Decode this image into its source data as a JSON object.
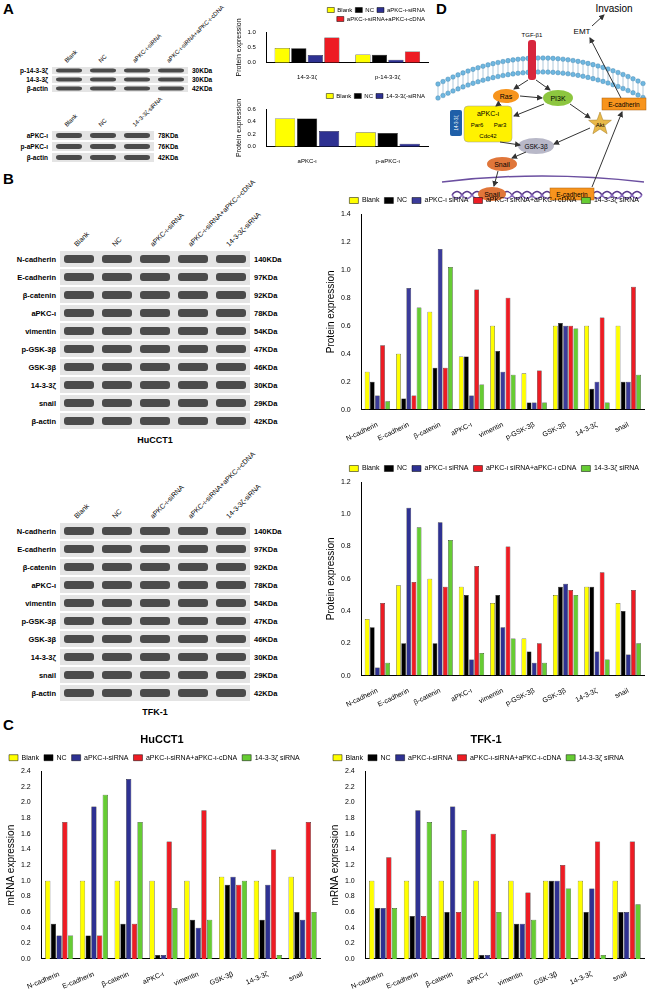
{
  "panel_labels": [
    "A",
    "B",
    "C",
    "D"
  ],
  "blots": [
    {
      "lanes": [
        "Blank",
        "NC",
        "aPKC-ι-siRNA",
        "aPKC-ι-siRNA+aPKC-ι-cDNA"
      ],
      "rows": [
        {
          "label": "p-14-3-3ζ",
          "size": "30KDa"
        },
        {
          "label": "14-3-3ζ",
          "size": "30KDa"
        },
        {
          "label": "β-actin",
          "size": "42KDa"
        }
      ]
    },
    {
      "lanes": [
        "Blank",
        "NC",
        "14-3-3ζ-siRNA"
      ],
      "rows": [
        {
          "label": "aPKC-ι",
          "size": "78KDa"
        },
        {
          "label": "p-aPKC-ι",
          "size": "76KDa"
        },
        {
          "label": "β-actin",
          "size": "42KDa"
        }
      ]
    },
    {
      "lanes": [
        "Blank",
        "NC",
        "aPKC-ι-siRNA",
        "aPKC-ι-siRNA+aPKC-ι-cDNA",
        "14-3-3ζ-siRNA"
      ],
      "rows": [
        {
          "label": "N-cadherin",
          "size": "140KDa"
        },
        {
          "label": "E-cadherin",
          "size": "97KDa"
        },
        {
          "label": "β-catenin",
          "size": "92KDa"
        },
        {
          "label": "aPKC-ι",
          "size": "78KDa"
        },
        {
          "label": "vimentin",
          "size": "54KDa"
        },
        {
          "label": "p-GSK-3β",
          "size": "47KDa"
        },
        {
          "label": "GSK-3β",
          "size": "46KDa"
        },
        {
          "label": "14-3-3ζ",
          "size": "30KDa"
        },
        {
          "label": "snail",
          "size": "29KDa"
        },
        {
          "label": "β-actin",
          "size": "42KDa"
        }
      ],
      "caption": "HuCCT1"
    },
    {
      "lanes": [
        "Blank",
        "NC",
        "aPKC-ι-siRNA",
        "aPKC-ι-siRNA+aPKC-ι-cDNA",
        "14-3-3ζ-siRNA"
      ],
      "rows": [
        {
          "label": "N-cadherin",
          "size": "140KDa"
        },
        {
          "label": "E-cadherin",
          "size": "97KDa"
        },
        {
          "label": "β-catenin",
          "size": "92KDa"
        },
        {
          "label": "aPKC-ι",
          "size": "78KDa"
        },
        {
          "label": "vimentin",
          "size": "54KDa"
        },
        {
          "label": "p-GSK-3β",
          "size": "47KDa"
        },
        {
          "label": "GSK-3β",
          "size": "46KDa"
        },
        {
          "label": "14-3-3ζ",
          "size": "30KDa"
        },
        {
          "label": "snail",
          "size": "29KDa"
        },
        {
          "label": "β-actin",
          "size": "42KDa"
        }
      ],
      "caption": "TFK-1"
    }
  ],
  "diagram": {
    "invasion": "Invasion",
    "emt": "EMT",
    "receptor": "TGF-β1",
    "ras": "Ras",
    "pi3k": "PI3K",
    "apkc": "aPKC-ι",
    "par6": "Par6",
    "par3": "Par3",
    "cdc42": "Cdc42",
    "tag": "14-3-3ζ",
    "akt": "Akt",
    "gsk": "GSK-3β",
    "snail": "Snail",
    "ecad": "E-cadherin",
    "nuclear_snail": "Snail",
    "nuclear_ecad": "E-cadherin"
  },
  "chart_data": [
    {
      "type": "bar",
      "y_label": "Protein expression",
      "categories": [
        "14-3-3ζ",
        "p-14-3-3ζ"
      ],
      "series": [
        {
          "name": "Blank",
          "color": "#ffff00",
          "values": [
            0.48,
            0.27
          ]
        },
        {
          "name": "NC",
          "color": "#000000",
          "values": [
            0.47,
            0.26
          ]
        },
        {
          "name": "aPKC-ι-siRNA",
          "color": "#2e3192",
          "values": [
            0.25,
            0.1
          ]
        },
        {
          "name": "aPKC-ι-siRNA+aPKC-ι-cDNA",
          "color": "#ed1c24",
          "values": [
            0.82,
            0.37
          ]
        }
      ],
      "ylim": [
        0,
        1
      ],
      "yticks": [
        {
          "value": 0,
          "label": "0.0"
        },
        0.5,
        {
          "value": 1,
          "label": "1.0"
        }
      ],
      "grid": false,
      "legend": "upper right"
    },
    {
      "type": "bar",
      "y_label": "Protein expression",
      "categories": [
        "aPKC-ι",
        "p-aPKC-ι"
      ],
      "series": [
        {
          "name": "Blank",
          "color": "#ffff00",
          "values": [
            0.45,
            0.23
          ]
        },
        {
          "name": "NC",
          "color": "#000000",
          "values": [
            0.45,
            0.22
          ]
        },
        {
          "name": "14-3-3ζ-siRNA",
          "color": "#2e3192",
          "values": [
            0.25,
            0.05
          ]
        }
      ],
      "ylim": [
        0,
        0.6
      ],
      "yticks": [
        {
          "value": 0,
          "label": "0.0"
        },
        0.2,
        0.4,
        0.6
      ],
      "grid": false,
      "legend": "upper right"
    },
    {
      "type": "bar",
      "y_label": "Protein expression",
      "categories": [
        "N-cadherin",
        "E-cadherin",
        "β-catenin",
        "aPKC-ι",
        "vimentin",
        "p-GSK-3β",
        "GSK-3β",
        "14-3-3ζ",
        "snail"
      ],
      "series": [
        {
          "name": "Blank",
          "color": "#ffff00",
          "values": [
            0.27,
            0.4,
            0.7,
            0.38,
            0.6,
            0.26,
            0.6,
            0.6,
            0.6
          ]
        },
        {
          "name": "NC",
          "color": "#000000",
          "values": [
            0.2,
            0.08,
            0.3,
            0.38,
            0.42,
            0.05,
            0.62,
            0.15,
            0.2
          ]
        },
        {
          "name": "aPKC-ι siRNA",
          "color": "#3b3b9a",
          "values": [
            0.1,
            0.87,
            1.15,
            0.1,
            0.27,
            0.05,
            0.6,
            0.2,
            0.2
          ]
        },
        {
          "name": "aPKC-ι siRNA+aPKC-ι cDNA",
          "color": "#ed1c24",
          "values": [
            0.46,
            0.1,
            0.3,
            0.86,
            0.8,
            0.28,
            0.6,
            0.66,
            0.88
          ]
        },
        {
          "name": "14-3-3ζ siRNA",
          "color": "#66cc33",
          "values": [
            0.06,
            0.73,
            1.02,
            0.18,
            0.25,
            0.05,
            0.58,
            0.05,
            0.25
          ]
        }
      ],
      "ylim": [
        0,
        1.4
      ],
      "yticks": [
        {
          "value": 0,
          "label": "0.0"
        },
        0.2,
        0.4,
        0.6,
        0.8,
        {
          "value": 1,
          "label": "1.0"
        },
        1.2,
        1.4
      ],
      "grid": false,
      "legend": "upper right"
    },
    {
      "type": "bar",
      "y_label": "Protein expression",
      "categories": [
        "N-cadherin",
        "E-cadherin",
        "β-catenin",
        "aPKC-ι",
        "vimentin",
        "p-GSK-3β",
        "GSK-3β",
        "14-3-3ζ",
        "snail"
      ],
      "series": [
        {
          "name": "Blank",
          "color": "#ffff00",
          "values": [
            0.35,
            0.56,
            0.6,
            0.55,
            0.45,
            0.23,
            0.5,
            0.55,
            0.45
          ]
        },
        {
          "name": "NC",
          "color": "#000000",
          "values": [
            0.3,
            0.2,
            0.2,
            0.5,
            0.5,
            0.15,
            0.55,
            0.55,
            0.4
          ]
        },
        {
          "name": "aPKC-ι siRNA",
          "color": "#2e3192",
          "values": [
            0.05,
            1.04,
            0.95,
            0.1,
            0.3,
            0.08,
            0.57,
            0.15,
            0.13
          ]
        },
        {
          "name": "aPKC-ι siRNA+aPKC-ι cDNA",
          "color": "#ed1c24",
          "values": [
            0.45,
            0.58,
            0.55,
            0.68,
            0.8,
            0.2,
            0.53,
            0.64,
            0.53
          ]
        },
        {
          "name": "14-3-3ζ siRNA",
          "color": "#66cc33",
          "values": [
            0.08,
            0.92,
            0.84,
            0.14,
            0.23,
            0.08,
            0.5,
            0.1,
            0.2
          ]
        }
      ],
      "ylim": [
        0,
        1.2
      ],
      "yticks": [
        {
          "value": 0,
          "label": "0.0"
        },
        0.2,
        0.4,
        0.6,
        0.8,
        {
          "value": 1,
          "label": "1.0"
        },
        1.2
      ],
      "grid": false,
      "legend": "upper right"
    },
    {
      "type": "bar",
      "title": "HuCCT1",
      "y_label": "mRNA expression",
      "categories": [
        "N-cadherin",
        "E-cadherin",
        "β-catenin",
        "aPKC-ι",
        "vimentin",
        "GSK-3β",
        "14-3-3ζ",
        "snail"
      ],
      "series": [
        {
          "name": "Blank",
          "color": "#ffff00",
          "values": [
            1.0,
            1.0,
            1.0,
            1.0,
            1.0,
            1.05,
            1.0,
            1.05
          ]
        },
        {
          "name": "NC",
          "color": "#000000",
          "values": [
            0.45,
            0.3,
            0.45,
            0.05,
            0.5,
            0.95,
            0.5,
            0.6
          ]
        },
        {
          "name": "aPKC-ι-siRNA",
          "color": "#2e3192",
          "values": [
            0.3,
            1.95,
            2.3,
            0.05,
            0.4,
            1.05,
            0.95,
            0.5
          ]
        },
        {
          "name": "aPKC-ι-siRNA+aPKC-ι-cDNA",
          "color": "#ed1c24",
          "values": [
            1.75,
            0.3,
            0.45,
            1.5,
            1.9,
            0.95,
            1.4,
            1.75
          ]
        },
        {
          "name": "14-3-3ζ siRNA",
          "color": "#66cc33",
          "values": [
            0.3,
            2.1,
            1.75,
            0.65,
            0.5,
            1.0,
            0.05,
            0.6
          ]
        }
      ],
      "ylim": [
        0,
        2.4
      ],
      "yticks": [
        {
          "value": 0,
          "label": "0.0"
        },
        0.2,
        0.4,
        0.6,
        0.8,
        {
          "value": 1,
          "label": "1.0"
        },
        1.2,
        1.4,
        1.6,
        1.8,
        {
          "value": 2,
          "label": "2.0"
        },
        2.2,
        2.4
      ],
      "grid": false,
      "legend": "upper left"
    },
    {
      "type": "bar",
      "title": "TFK-1",
      "y_label": "mRNA expression",
      "categories": [
        "N-cadherin",
        "E-cadherin",
        "β-catenin",
        "aPKC-ι",
        "vimentin",
        "GSK-3β",
        "14-3-3ζ",
        "snail"
      ],
      "series": [
        {
          "name": "Blank",
          "color": "#ffff00",
          "values": [
            1.0,
            1.0,
            1.0,
            1.0,
            1.0,
            1.0,
            1.0,
            1.0
          ]
        },
        {
          "name": "NC",
          "color": "#000000",
          "values": [
            0.65,
            0.55,
            0.6,
            0.05,
            0.45,
            1.0,
            0.6,
            0.6
          ]
        },
        {
          "name": "aPKC-ι-siRNA",
          "color": "#2e3192",
          "values": [
            0.65,
            1.9,
            1.95,
            0.05,
            0.45,
            1.0,
            0.9,
            0.6
          ]
        },
        {
          "name": "aPKC-ι-siRNA+aPKC-ι-cDNA",
          "color": "#ed1c24",
          "values": [
            1.3,
            0.55,
            0.6,
            1.6,
            0.85,
            1.2,
            1.5,
            1.5
          ]
        },
        {
          "name": "14-3-3ζ siRNA",
          "color": "#66cc33",
          "values": [
            0.65,
            1.75,
            1.65,
            0.6,
            0.5,
            0.9,
            0.05,
            0.7
          ]
        }
      ],
      "ylim": [
        0,
        2.4
      ],
      "yticks": [
        {
          "value": 0,
          "label": "0.0"
        },
        0.2,
        0.4,
        0.6,
        0.8,
        {
          "value": 1,
          "label": "1.0"
        },
        1.2,
        1.4,
        1.6,
        1.8,
        {
          "value": 2,
          "label": "2.0"
        },
        2.2,
        2.4
      ],
      "grid": false,
      "legend": "upper left"
    }
  ]
}
